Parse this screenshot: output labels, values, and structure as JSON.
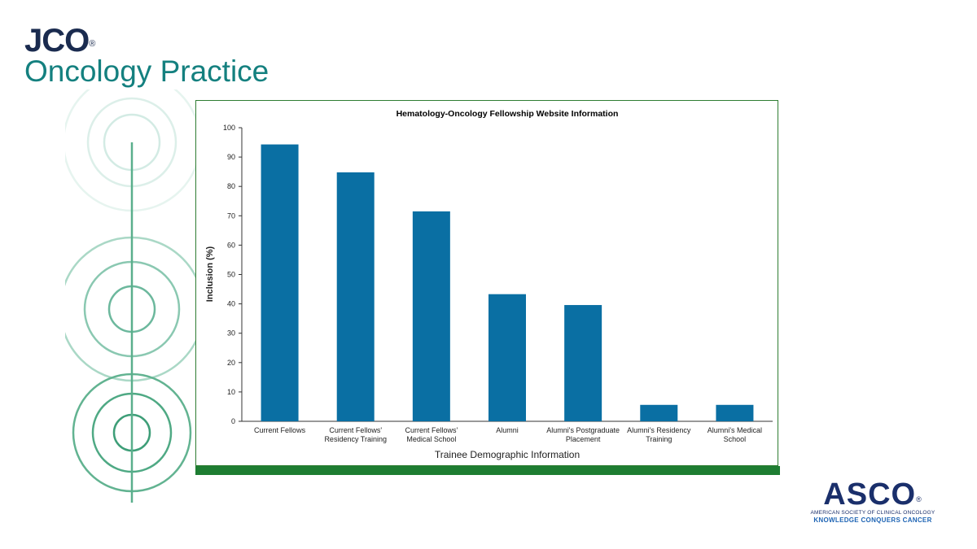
{
  "journal": {
    "name": "JCO",
    "mark": "®",
    "subtitle": "Oncology Practice"
  },
  "org_logo": {
    "name": "ASCO",
    "mark": "®",
    "full_name": "AMERICAN SOCIETY OF CLINICAL ONCOLOGY",
    "tagline": "KNOWLEDGE CONQUERS CANCER"
  },
  "colors": {
    "bar": "#0a6fa3",
    "accent_green": "#1e7d32",
    "journal_teal": "#14807f",
    "asco_navy": "#1a2f6b"
  },
  "chart_data": {
    "type": "bar",
    "title": "Hematology-Oncology Fellowship Website Information",
    "xlabel": "Trainee Demographic Information",
    "ylabel": "Inclusion (%)",
    "ylim": [
      0,
      100
    ],
    "yticks": [
      0,
      10,
      20,
      30,
      40,
      50,
      60,
      70,
      80,
      90,
      100
    ],
    "categories": [
      [
        "Current Fellows"
      ],
      [
        "Current Fellows'",
        "Residency Training"
      ],
      [
        "Current Fellows'",
        "Medical School"
      ],
      [
        "Alumni"
      ],
      [
        "Alumni's Postgraduate",
        "Placement"
      ],
      [
        "Alumni's Residency",
        "Training"
      ],
      [
        "Alumni's Medical",
        "School"
      ]
    ],
    "values": [
      94.3,
      84.8,
      71.5,
      43.3,
      39.6,
      5.6,
      5.6
    ],
    "grid": false,
    "legend": "none"
  }
}
